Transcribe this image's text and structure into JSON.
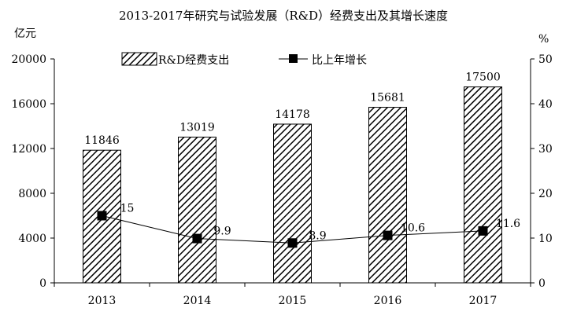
{
  "chart_data": {
    "type": "bar",
    "title": "2013-2017年研究与试验发展（R&D）经费支出及其增长速度",
    "left_unit": "亿元",
    "right_unit": "%",
    "categories": [
      "2013",
      "2014",
      "2015",
      "2016",
      "2017"
    ],
    "series": [
      {
        "name": "R&D经费支出",
        "type": "bar",
        "axis": "left",
        "values": [
          11846,
          13019,
          14178,
          15681,
          17500
        ],
        "labels": [
          "11846",
          "13019",
          "14178",
          "15681",
          "17500"
        ]
      },
      {
        "name": "比上年增长",
        "type": "line",
        "axis": "right",
        "values": [
          15,
          9.9,
          8.9,
          10.6,
          11.6
        ],
        "labels": [
          "15",
          "9.9",
          "8.9",
          "10.6",
          "11.6"
        ]
      }
    ],
    "ylim_left": [
      0,
      20000
    ],
    "yticks_left": [
      "0",
      "4000",
      "8000",
      "12000",
      "16000",
      "20000"
    ],
    "ylim_right": [
      0,
      50
    ],
    "yticks_right": [
      "0",
      "10",
      "20",
      "30",
      "40",
      "50"
    ],
    "grid": false,
    "legend_position": "top"
  }
}
